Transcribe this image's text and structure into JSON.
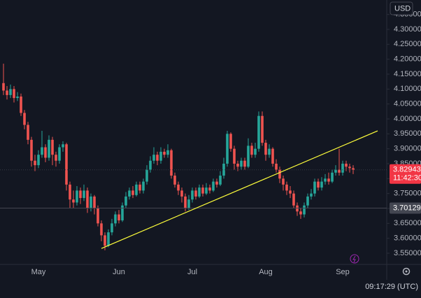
{
  "chart_data": {
    "type": "candlestick",
    "currency": "USD",
    "clock": "09:17:29 (UTC)",
    "up_color": "#26a69a",
    "down_color": "#ef5350",
    "grid": false,
    "categories": [
      null,
      null,
      null,
      null,
      null,
      null,
      null,
      null,
      null,
      null,
      "May",
      null,
      null,
      null,
      null,
      null,
      null,
      null,
      null,
      null,
      null,
      null,
      null,
      null,
      null,
      null,
      null,
      null,
      null,
      null,
      null,
      null,
      null,
      "Jun",
      null,
      null,
      null,
      null,
      null,
      null,
      null,
      null,
      null,
      null,
      null,
      null,
      null,
      null,
      null,
      null,
      null,
      null,
      null,
      null,
      "Jul",
      null,
      null,
      null,
      null,
      null,
      null,
      null,
      null,
      null,
      null,
      null,
      null,
      null,
      null,
      null,
      null,
      null,
      null,
      null,
      null,
      "Aug",
      null,
      null,
      null,
      null,
      null,
      null,
      null,
      null,
      null,
      null,
      null,
      null,
      null,
      null,
      null,
      null,
      null,
      null,
      null,
      null,
      null,
      "Sep",
      null,
      null,
      null
    ],
    "open": [
      4.12,
      4.095,
      4.08,
      4.1,
      4.07,
      4.075,
      4.02,
      3.98,
      3.93,
      3.86,
      3.845,
      3.88,
      3.905,
      3.87,
      3.93,
      3.88,
      3.86,
      3.905,
      3.915,
      3.78,
      3.73,
      3.72,
      3.76,
      3.735,
      3.76,
      3.7,
      3.74,
      3.7,
      3.65,
      3.61,
      3.575,
      3.62,
      3.65,
      3.68,
      3.66,
      3.71,
      3.74,
      3.76,
      3.745,
      3.78,
      3.76,
      3.79,
      3.83,
      3.86,
      3.88,
      3.86,
      3.89,
      3.88,
      3.895,
      3.81,
      3.78,
      3.76,
      3.74,
      3.7,
      3.73,
      3.76,
      3.74,
      3.77,
      3.75,
      3.77,
      3.76,
      3.79,
      3.78,
      3.81,
      3.85,
      3.95,
      3.9,
      3.85,
      3.84,
      3.86,
      3.84,
      3.91,
      3.88,
      3.9,
      4.01,
      3.92,
      3.88,
      3.9,
      3.85,
      3.83,
      3.8,
      3.78,
      3.76,
      3.75,
      3.71,
      3.69,
      3.68,
      3.71,
      3.74,
      3.75,
      3.79,
      3.77,
      3.79,
      3.8,
      3.79,
      3.82,
      3.83,
      3.82,
      3.85,
      3.84,
      3.835
    ],
    "high": [
      4.185,
      4.11,
      4.115,
      4.11,
      4.09,
      4.085,
      4.03,
      3.99,
      3.94,
      3.88,
      3.895,
      3.96,
      3.915,
      3.945,
      3.94,
      3.89,
      3.915,
      3.925,
      3.92,
      3.79,
      3.76,
      3.775,
      3.77,
      3.78,
      3.77,
      3.75,
      3.745,
      3.71,
      3.66,
      3.62,
      3.63,
      3.665,
      3.69,
      3.695,
      3.72,
      3.755,
      3.77,
      3.775,
      3.79,
      3.79,
      3.8,
      3.845,
      3.875,
      3.905,
      3.89,
      3.905,
      3.9,
      3.915,
      3.9,
      3.82,
      3.79,
      3.77,
      3.75,
      3.745,
      3.77,
      3.77,
      3.78,
      3.78,
      3.785,
      3.78,
      3.8,
      3.8,
      3.825,
      3.87,
      3.96,
      3.955,
      3.91,
      3.86,
      3.87,
      3.87,
      3.935,
      3.92,
      3.92,
      4.025,
      4.025,
      3.93,
      3.915,
      3.905,
      3.865,
      3.84,
      3.81,
      3.79,
      3.775,
      3.76,
      3.72,
      3.7,
      3.72,
      3.75,
      3.765,
      3.8,
      3.8,
      3.805,
      3.815,
      3.82,
      3.83,
      3.845,
      3.9,
      3.86,
      3.86,
      3.85,
      3.845
    ],
    "low": [
      4.08,
      4.065,
      4.07,
      4.055,
      4.06,
      4.01,
      3.965,
      3.915,
      3.84,
      3.825,
      3.835,
      3.87,
      3.855,
      3.86,
      3.845,
      3.84,
      3.85,
      3.89,
      3.76,
      3.7,
      3.7,
      3.71,
      3.715,
      3.725,
      3.685,
      3.69,
      3.68,
      3.64,
      3.59,
      3.56,
      3.57,
      3.61,
      3.64,
      3.65,
      3.655,
      3.7,
      3.73,
      3.735,
      3.74,
      3.75,
      3.75,
      3.78,
      3.82,
      3.85,
      3.845,
      3.85,
      3.87,
      3.87,
      3.8,
      3.77,
      3.745,
      3.72,
      3.69,
      3.695,
      3.72,
      3.73,
      3.735,
      3.74,
      3.745,
      3.75,
      3.755,
      3.77,
      3.775,
      3.8,
      3.84,
      3.89,
      3.83,
      3.825,
      3.83,
      3.83,
      3.835,
      3.87,
      3.87,
      3.89,
      3.91,
      3.86,
      3.87,
      3.84,
      3.82,
      3.785,
      3.76,
      3.745,
      3.735,
      3.7,
      3.675,
      3.665,
      3.67,
      3.7,
      3.73,
      3.74,
      3.76,
      3.76,
      3.78,
      3.78,
      3.785,
      3.81,
      3.81,
      3.81,
      3.825,
      3.82,
      3.815
    ],
    "close": [
      4.095,
      4.08,
      4.1,
      4.07,
      4.075,
      4.02,
      3.98,
      3.93,
      3.86,
      3.845,
      3.88,
      3.905,
      3.87,
      3.93,
      3.88,
      3.86,
      3.905,
      3.915,
      3.78,
      3.73,
      3.72,
      3.76,
      3.735,
      3.76,
      3.7,
      3.74,
      3.7,
      3.65,
      3.61,
      3.575,
      3.62,
      3.65,
      3.68,
      3.66,
      3.71,
      3.74,
      3.76,
      3.745,
      3.78,
      3.76,
      3.79,
      3.83,
      3.86,
      3.88,
      3.86,
      3.89,
      3.88,
      3.895,
      3.81,
      3.78,
      3.76,
      3.74,
      3.7,
      3.73,
      3.76,
      3.74,
      3.77,
      3.75,
      3.77,
      3.76,
      3.79,
      3.78,
      3.81,
      3.85,
      3.95,
      3.9,
      3.85,
      3.84,
      3.86,
      3.84,
      3.91,
      3.88,
      3.9,
      4.01,
      3.92,
      3.88,
      3.9,
      3.85,
      3.83,
      3.8,
      3.78,
      3.76,
      3.75,
      3.71,
      3.69,
      3.68,
      3.71,
      3.74,
      3.75,
      3.79,
      3.77,
      3.79,
      3.8,
      3.79,
      3.82,
      3.83,
      3.82,
      3.85,
      3.84,
      3.835,
      3.82943
    ],
    "xlim": [
      -1,
      109.6
    ],
    "ylim": [
      3.5125,
      4.3984
    ],
    "yticks": [
      {
        "value": 3.55,
        "label": "3.55000"
      },
      {
        "value": 3.6,
        "label": "3.60000"
      },
      {
        "value": 3.65,
        "label": "3.65000"
      },
      {
        "value": 3.7,
        "label": "3.70000"
      },
      {
        "value": 3.75,
        "label": "3.75000"
      },
      {
        "value": 3.8,
        "label": "3.80000"
      },
      {
        "value": 3.85,
        "label": "3.85000"
      },
      {
        "value": 3.9,
        "label": "3.90000"
      },
      {
        "value": 3.95,
        "label": "3.95000"
      },
      {
        "value": 4.0,
        "label": "4.00000"
      },
      {
        "value": 4.05,
        "label": "4.05000"
      },
      {
        "value": 4.1,
        "label": "4.10000"
      },
      {
        "value": 4.15,
        "label": "4.15000"
      },
      {
        "value": 4.2,
        "label": "4.20000"
      },
      {
        "value": 4.25,
        "label": "4.25000"
      },
      {
        "value": 4.3,
        "label": "4.30000"
      },
      {
        "value": 4.35,
        "label": "4.35000"
      }
    ],
    "last_price": 3.82943,
    "last_price_color": "#f23645",
    "countdown": "11:42:30",
    "price_line": 3.70129,
    "price_line_color": "#434651",
    "trendline": {
      "x": [
        28,
        107
      ],
      "values": [
        3.566,
        3.96
      ],
      "color": "#ffff3b"
    }
  }
}
